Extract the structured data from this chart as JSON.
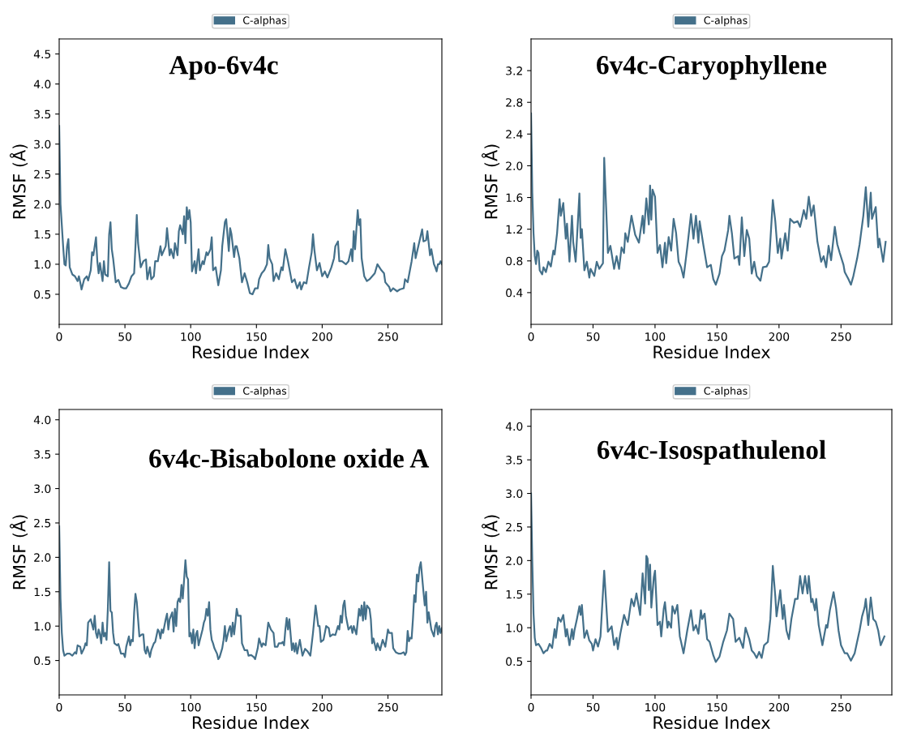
{
  "chart_data": [
    {
      "type": "line",
      "title": "Apo-6v4c",
      "xlabel": "Residue Index",
      "ylabel": "RMSF (Å)",
      "legend": "top",
      "grid": false,
      "xlim": [
        0,
        291
      ],
      "xticks": [
        0,
        50,
        100,
        150,
        200,
        250
      ],
      "ylim": [
        0,
        4.75
      ],
      "yticks": [
        0.5,
        {
          "value": 1,
          "label": "1.0"
        },
        1.5,
        {
          "value": 2,
          "label": "2.0"
        },
        2.5,
        {
          "value": 3,
          "label": "3.0"
        },
        3.5,
        {
          "value": 4,
          "label": "4.0"
        },
        4.5
      ],
      "x": [
        0,
        1,
        3,
        4,
        5,
        6,
        7,
        8,
        10,
        12,
        14,
        15,
        16,
        17,
        19,
        21,
        22,
        24,
        25,
        26,
        28,
        29,
        30,
        31,
        33,
        34,
        35,
        37,
        38,
        39,
        40,
        41,
        43,
        45,
        47,
        49,
        51,
        53,
        55,
        57,
        58,
        59,
        60,
        62,
        64,
        66,
        67,
        69,
        70,
        72,
        73,
        75,
        77,
        78,
        80,
        81,
        82,
        84,
        85,
        87,
        88,
        90,
        91,
        92,
        94,
        95,
        96,
        97,
        98,
        99,
        100,
        101,
        103,
        104,
        106,
        107,
        109,
        110,
        112,
        113,
        115,
        116,
        117,
        119,
        121,
        123,
        124,
        126,
        127,
        129,
        130,
        131,
        133,
        134,
        135,
        137,
        139,
        141,
        143,
        145,
        147,
        149,
        151,
        152,
        154,
        156,
        158,
        159,
        160,
        162,
        163,
        165,
        167,
        169,
        170,
        172,
        174,
        177,
        179,
        181,
        183,
        184,
        186,
        188,
        190,
        192,
        193,
        194,
        196,
        198,
        200,
        202,
        204,
        207,
        209,
        210,
        212,
        213,
        215,
        218,
        220,
        222,
        223,
        224,
        225,
        227,
        228,
        229,
        230,
        232,
        234,
        236,
        238,
        240,
        242,
        245,
        247,
        248,
        251,
        252,
        254,
        257,
        259,
        262,
        263,
        265,
        268,
        270,
        271,
        276,
        277,
        279,
        280,
        282,
        283,
        285,
        286,
        287,
        288,
        289,
        290,
        291
      ],
      "series": [
        {
          "name": "C-alphas",
          "color": "#44708a",
          "values": [
            3.3,
            2.0,
            1.3,
            1.0,
            0.98,
            1.3,
            1.42,
            0.95,
            0.83,
            0.8,
            0.72,
            0.8,
            0.7,
            0.58,
            0.75,
            0.8,
            0.73,
            0.9,
            1.2,
            1.15,
            1.45,
            1.05,
            0.85,
            1.02,
            0.72,
            1.05,
            0.83,
            0.8,
            1.5,
            1.7,
            1.25,
            1.1,
            0.7,
            0.74,
            0.62,
            0.6,
            0.6,
            0.68,
            0.8,
            0.85,
            1.3,
            1.82,
            1.35,
            0.95,
            1.05,
            1.08,
            0.75,
            0.95,
            0.75,
            0.8,
            1.05,
            1.05,
            1.3,
            1.15,
            1.25,
            1.3,
            1.6,
            1.15,
            1.25,
            1.1,
            1.35,
            1.15,
            1.55,
            1.65,
            1.5,
            1.8,
            1.35,
            1.95,
            1.75,
            1.9,
            1.7,
            0.88,
            1.05,
            0.85,
            1.25,
            0.9,
            1.05,
            1.0,
            1.2,
            1.15,
            1.25,
            1.45,
            0.9,
            0.95,
            0.65,
            0.9,
            1.3,
            1.7,
            1.75,
            1.22,
            1.6,
            1.5,
            1.12,
            1.3,
            1.3,
            1.1,
            0.7,
            0.85,
            0.7,
            0.52,
            0.5,
            0.6,
            0.6,
            0.75,
            0.85,
            0.9,
            1.0,
            1.32,
            1.1,
            1.0,
            0.72,
            0.85,
            0.75,
            0.95,
            0.9,
            1.25,
            1.05,
            0.7,
            0.75,
            0.6,
            0.7,
            0.58,
            0.7,
            0.68,
            0.95,
            1.2,
            1.5,
            1.25,
            0.9,
            1.02,
            0.8,
            0.88,
            0.78,
            0.95,
            1.1,
            1.3,
            1.38,
            1.05,
            1.05,
            1.0,
            1.05,
            1.25,
            1.05,
            1.55,
            1.25,
            1.9,
            1.65,
            1.75,
            1.1,
            0.8,
            0.72,
            0.75,
            0.8,
            0.85,
            1.0,
            0.9,
            0.85,
            0.7,
            0.62,
            0.55,
            0.6,
            0.55,
            0.58,
            0.6,
            0.75,
            0.7,
            1.05,
            1.35,
            1.1,
            1.58,
            1.38,
            1.4,
            1.55,
            1.15,
            1.25,
            1.0,
            0.95,
            0.88,
            1.0,
            1.0,
            1.05,
            1.0
          ]
        }
      ]
    },
    {
      "type": "line",
      "title": "6v4c-Caryophyllene",
      "xlabel": "Residue Index",
      "ylabel": "RMSF (Å)",
      "legend": "top",
      "grid": false,
      "xlim": [
        0,
        291
      ],
      "xticks": [
        0,
        50,
        100,
        150,
        200,
        250
      ],
      "ylim": [
        0,
        3.6
      ],
      "yticks": [
        0.4,
        0.8,
        1.2,
        1.6,
        {
          "value": 2,
          "label": "2.0"
        },
        2.4,
        2.8,
        3.2
      ],
      "x": [
        0,
        1,
        2,
        3,
        4,
        5,
        6,
        7,
        9,
        10,
        12,
        14,
        16,
        18,
        19,
        21,
        23,
        24,
        26,
        28,
        29,
        31,
        33,
        34,
        36,
        39,
        40,
        41,
        43,
        45,
        47,
        48,
        51,
        53,
        55,
        58,
        59,
        62,
        64,
        67,
        69,
        71,
        73,
        75,
        76,
        78,
        81,
        84,
        87,
        90,
        91,
        93,
        95,
        96,
        97,
        98,
        100,
        102,
        104,
        106,
        108,
        109,
        111,
        113,
        115,
        117,
        119,
        121,
        123,
        126,
        129,
        131,
        133,
        135,
        136,
        139,
        142,
        145,
        147,
        149,
        152,
        154,
        156,
        159,
        160,
        162,
        164,
        167,
        168,
        170,
        172,
        174,
        176,
        178,
        180,
        182,
        185,
        187,
        190,
        192,
        195,
        197,
        199,
        201,
        202,
        205,
        207,
        209,
        212,
        215,
        217,
        220,
        222,
        224,
        226,
        228,
        231,
        234,
        236,
        238,
        240,
        242,
        245,
        247,
        249,
        252,
        253,
        256,
        258,
        260,
        263,
        265,
        268,
        270,
        272,
        274,
        275,
        278,
        280,
        281,
        284,
        286
      ],
      "series": [
        {
          "name": "C-alphas",
          "color": "#44708a",
          "values": [
            2.66,
            1.66,
            1.15,
            0.86,
            0.76,
            0.93,
            0.9,
            0.68,
            0.63,
            0.72,
            0.66,
            0.79,
            0.73,
            0.93,
            0.88,
            1.15,
            1.58,
            1.37,
            1.53,
            1.08,
            1.27,
            0.79,
            1.37,
            1.04,
            0.79,
            1.65,
            1.09,
            1.2,
            0.68,
            0.79,
            0.59,
            0.7,
            0.61,
            0.79,
            0.7,
            0.77,
            2.1,
            0.9,
            0.99,
            0.7,
            0.86,
            0.7,
            0.97,
            0.9,
            1.15,
            1.04,
            1.37,
            1.13,
            1.03,
            1.37,
            1.15,
            1.59,
            1.26,
            1.75,
            1.32,
            1.7,
            1.61,
            0.9,
            1.0,
            0.72,
            1.03,
            0.77,
            1.1,
            0.93,
            1.33,
            1.15,
            0.79,
            0.72,
            0.59,
            0.97,
            1.39,
            1.08,
            1.37,
            1.03,
            1.3,
            1.0,
            0.72,
            0.75,
            0.57,
            0.5,
            0.64,
            0.86,
            0.93,
            1.19,
            1.37,
            1.15,
            0.83,
            0.86,
            0.75,
            1.35,
            0.86,
            1.19,
            1.08,
            0.64,
            0.79,
            0.61,
            0.55,
            0.72,
            0.73,
            0.79,
            1.57,
            1.3,
            0.9,
            1.08,
            0.83,
            1.15,
            0.93,
            1.33,
            1.28,
            1.3,
            1.23,
            1.44,
            1.33,
            1.61,
            1.37,
            1.5,
            1.04,
            0.79,
            0.86,
            0.72,
            0.99,
            0.81,
            1.23,
            1.01,
            0.9,
            0.75,
            0.66,
            0.57,
            0.5,
            0.61,
            0.83,
            1.01,
            1.37,
            1.73,
            1.23,
            1.66,
            1.33,
            1.48,
            0.97,
            1.08,
            0.79,
            1.04
          ]
        }
      ]
    },
    {
      "type": "line",
      "title": "6v4c-Bisabolone oxide A",
      "xlabel": "Residue Index",
      "ylabel": "RMSF (Å)",
      "legend": "top",
      "grid": false,
      "xlim": [
        0,
        291
      ],
      "xticks": [
        0,
        50,
        100,
        150,
        200,
        250
      ],
      "ylim": [
        0,
        4.15
      ],
      "yticks": [
        0.5,
        {
          "value": 1,
          "label": "1.0"
        },
        1.5,
        {
          "value": 2,
          "label": "2.0"
        },
        2.5,
        {
          "value": 3,
          "label": "3.0"
        },
        3.5,
        {
          "value": 4,
          "label": "4.0"
        }
      ],
      "x": [
        0,
        1,
        2,
        3,
        4,
        6,
        8,
        10,
        12,
        13,
        14,
        16,
        17,
        19,
        20,
        21,
        22,
        24,
        26,
        27,
        28,
        29,
        30,
        31,
        32,
        33,
        34,
        35,
        36,
        37,
        38,
        39,
        40,
        41,
        42,
        44,
        45,
        47,
        49,
        50,
        51,
        53,
        54,
        55,
        56,
        57,
        58,
        59,
        60,
        61,
        63,
        64,
        65,
        66,
        67,
        69,
        70,
        72,
        73,
        75,
        76,
        77,
        78,
        79,
        81,
        82,
        83,
        84,
        86,
        87,
        88,
        89,
        90,
        91,
        92,
        93,
        94,
        96,
        97,
        98,
        99,
        100,
        101,
        102,
        103,
        104,
        105,
        106,
        107,
        109,
        110,
        111,
        112,
        113,
        114,
        115,
        116,
        117,
        118,
        120,
        121,
        122,
        124,
        125,
        126,
        127,
        129,
        130,
        131,
        132,
        133,
        134,
        135,
        136,
        138,
        139,
        141,
        143,
        144,
        146,
        148,
        149,
        151,
        152,
        154,
        155,
        157,
        159,
        161,
        163,
        164,
        166,
        167,
        169,
        170,
        171,
        172,
        173,
        174,
        175,
        177,
        178,
        179,
        180,
        181,
        183,
        185,
        187,
        189,
        191,
        193,
        195,
        197,
        198,
        199,
        201,
        203,
        205,
        206,
        208,
        210,
        212,
        213,
        214,
        215,
        216,
        217,
        218,
        220,
        222,
        223,
        224,
        226,
        228,
        229,
        230,
        231,
        232,
        233,
        234,
        236,
        237,
        238,
        239,
        241,
        242,
        244,
        246,
        248,
        250,
        251,
        253,
        254,
        256,
        258,
        260,
        262,
        263,
        264,
        265,
        266,
        267,
        268,
        269,
        270,
        271,
        272,
        273,
        274,
        275,
        277,
        278,
        279,
        280,
        281,
        283,
        285,
        286,
        287,
        288,
        289,
        290,
        291
      ],
      "series": [
        {
          "name": "C-alphas",
          "color": "#44708a",
          "values": [
            2.45,
            1.4,
            0.9,
            0.65,
            0.57,
            0.6,
            0.6,
            0.57,
            0.62,
            0.6,
            0.72,
            0.7,
            0.6,
            0.68,
            0.75,
            0.72,
            1.05,
            1.1,
            0.95,
            1.15,
            0.9,
            0.83,
            0.95,
            0.88,
            0.75,
            1.05,
            0.85,
            0.9,
            0.8,
            1.25,
            1.93,
            1.22,
            1.2,
            0.9,
            0.75,
            0.72,
            0.74,
            0.6,
            0.6,
            0.55,
            0.7,
            0.85,
            0.72,
            0.8,
            0.78,
            1.2,
            1.47,
            1.35,
            1.1,
            0.85,
            0.88,
            0.88,
            0.65,
            0.6,
            0.7,
            0.55,
            0.65,
            0.75,
            0.77,
            0.95,
            0.92,
            0.82,
            0.95,
            0.9,
            1.1,
            1.18,
            0.95,
            1.1,
            1.2,
            0.92,
            1.25,
            1.0,
            1.35,
            1.4,
            1.35,
            1.6,
            1.4,
            1.96,
            1.72,
            1.68,
            0.85,
            0.9,
            0.75,
            0.95,
            0.68,
            0.88,
            0.93,
            0.72,
            0.8,
            0.95,
            1.05,
            1.1,
            1.25,
            1.15,
            1.35,
            0.95,
            0.8,
            0.75,
            0.68,
            0.6,
            0.52,
            0.55,
            0.68,
            0.8,
            1.0,
            0.78,
            0.95,
            1.0,
            0.85,
            1.05,
            0.88,
            1.05,
            1.25,
            1.15,
            1.15,
            0.75,
            0.65,
            0.65,
            0.57,
            0.58,
            0.55,
            0.52,
            0.68,
            0.82,
            0.7,
            0.75,
            0.72,
            1.05,
            0.95,
            0.9,
            0.7,
            0.7,
            0.75,
            0.75,
            0.77,
            0.72,
            0.95,
            1.12,
            0.95,
            1.1,
            0.65,
            0.75,
            0.63,
            0.75,
            0.6,
            0.8,
            0.57,
            0.67,
            0.63,
            0.57,
            0.9,
            1.3,
            1.0,
            1.0,
            0.77,
            0.8,
            1.0,
            0.97,
            0.85,
            0.88,
            0.87,
            1.0,
            0.95,
            1.15,
            1.05,
            1.3,
            1.37,
            1.15,
            0.95,
            1.0,
            0.9,
            1.0,
            0.88,
            1.25,
            1.15,
            1.3,
            1.08,
            1.35,
            1.1,
            1.3,
            1.25,
            1.1,
            0.75,
            0.82,
            0.65,
            0.75,
            0.65,
            0.8,
            0.7,
            0.95,
            0.9,
            0.9,
            0.68,
            0.62,
            0.6,
            0.6,
            0.62,
            0.58,
            0.62,
            0.93,
            0.78,
            0.83,
            0.82,
            1.1,
            1.45,
            1.35,
            1.75,
            1.65,
            1.85,
            1.93,
            1.5,
            1.3,
            1.5,
            1.05,
            1.2,
            0.95,
            0.85,
            1.0,
            1.05,
            0.88,
            1.0,
            0.9,
            0.97
          ]
        }
      ]
    },
    {
      "type": "line",
      "title": "6v4c-Isospathulenol",
      "xlabel": "Residue Index",
      "ylabel": "RMSF (Å)",
      "legend": "top",
      "grid": false,
      "xlim": [
        0,
        291
      ],
      "xticks": [
        0,
        50,
        100,
        150,
        200,
        250
      ],
      "ylim": [
        0,
        4.25
      ],
      "yticks": [
        0.5,
        {
          "value": 1,
          "label": "1.0"
        },
        1.5,
        {
          "value": 2,
          "label": "2.0"
        },
        2.5,
        {
          "value": 3,
          "label": "3.0"
        },
        3.5,
        {
          "value": 4,
          "label": "4.0"
        }
      ],
      "x": [
        0,
        1,
        2,
        3,
        4,
        6,
        8,
        10,
        12,
        13,
        15,
        17,
        19,
        20,
        22,
        24,
        26,
        28,
        29,
        31,
        33,
        34,
        35,
        37,
        39,
        40,
        41,
        43,
        45,
        47,
        49,
        50,
        52,
        54,
        56,
        59,
        62,
        65,
        67,
        69,
        70,
        72,
        75,
        78,
        79,
        81,
        83,
        85,
        88,
        90,
        92,
        93,
        94,
        95,
        96,
        97,
        99,
        100,
        102,
        104,
        105,
        107,
        108,
        110,
        111,
        113,
        114,
        116,
        118,
        120,
        121,
        123,
        126,
        129,
        131,
        133,
        135,
        137,
        138,
        140,
        142,
        144,
        147,
        149,
        152,
        155,
        158,
        160,
        163,
        165,
        168,
        171,
        173,
        176,
        178,
        180,
        182,
        184,
        186,
        188,
        191,
        193,
        195,
        197,
        198,
        199,
        201,
        203,
        204,
        206,
        208,
        210,
        213,
        215,
        217,
        219,
        221,
        223,
        224,
        226,
        227,
        229,
        230,
        232,
        235,
        238,
        239,
        241,
        244,
        246,
        248,
        250,
        253,
        255,
        258,
        261,
        263,
        265,
        267,
        269,
        270,
        272,
        274,
        276,
        278,
        280,
        282,
        285
      ],
      "series": [
        {
          "name": "C-alphas",
          "color": "#44708a",
          "values": [
            3.0,
            1.98,
            1.21,
            0.85,
            0.74,
            0.76,
            0.7,
            0.62,
            0.66,
            0.66,
            0.76,
            0.7,
            0.98,
            0.85,
            1.15,
            1.09,
            1.19,
            0.87,
            0.98,
            0.74,
            0.98,
            0.83,
            0.96,
            1.13,
            1.32,
            1.19,
            1.34,
            0.85,
            0.96,
            0.81,
            0.76,
            0.66,
            0.83,
            0.72,
            0.87,
            1.85,
            0.94,
            1.02,
            0.74,
            0.85,
            0.68,
            0.91,
            1.19,
            1.04,
            1.17,
            1.43,
            1.32,
            1.51,
            1.19,
            1.81,
            1.36,
            2.07,
            2.03,
            1.56,
            1.94,
            1.3,
            1.75,
            1.85,
            1.04,
            1.09,
            0.87,
            1.28,
            1.38,
            1.0,
            1.09,
            1.0,
            1.32,
            1.21,
            1.34,
            0.87,
            0.79,
            0.62,
            0.96,
            1.26,
            0.96,
            1.04,
            0.91,
            1.26,
            1.13,
            1.21,
            0.83,
            0.79,
            0.59,
            0.49,
            0.57,
            0.79,
            0.96,
            1.21,
            1.13,
            0.79,
            0.85,
            0.7,
            1.0,
            0.83,
            0.66,
            0.62,
            0.55,
            0.64,
            0.55,
            0.74,
            0.79,
            1.13,
            1.92,
            1.47,
            1.17,
            1.3,
            1.56,
            1.13,
            1.34,
            0.96,
            0.83,
            1.13,
            1.43,
            1.43,
            1.77,
            1.51,
            1.77,
            1.51,
            1.77,
            1.38,
            1.43,
            1.26,
            1.43,
            1.04,
            0.74,
            1.04,
            1.0,
            1.26,
            1.53,
            1.3,
            0.96,
            0.74,
            0.62,
            0.62,
            0.51,
            0.62,
            0.79,
            0.96,
            1.17,
            1.3,
            1.43,
            1.04,
            1.45,
            1.13,
            1.09,
            0.96,
            0.74,
            0.87
          ]
        }
      ]
    }
  ]
}
